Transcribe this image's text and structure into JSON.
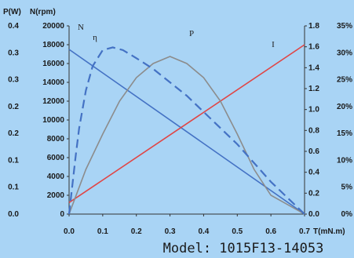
{
  "chart_data": {
    "type": "line",
    "model_label": "Model: 1015F13-14053",
    "x_axis": {
      "label": "T(mN.m)",
      "range": [
        0,
        0.7
      ],
      "ticks": [
        "0.0",
        "0.1",
        "0.2",
        "0.3",
        "0.4",
        "0.5",
        "0.6",
        "0.7"
      ]
    },
    "left_axes": [
      {
        "label": "P(W)",
        "range": [
          0,
          0.4
        ],
        "ticks": [
          "0.0",
          "0.1",
          "0.1",
          "0.2",
          "0.2",
          "0.3",
          "0.3",
          "0.4"
        ]
      },
      {
        "label": "N(rpm)",
        "range": [
          0,
          20000
        ],
        "ticks": [
          "0",
          "2000",
          "4000",
          "6000",
          "8000",
          "10000",
          "12000",
          "14000",
          "16000",
          "18000",
          "20000"
        ]
      }
    ],
    "right_axes": [
      {
        "label": "",
        "range": [
          0,
          1.8
        ],
        "ticks": [
          "0.0",
          "0.2",
          "0.4",
          "0.6",
          "0.8",
          "1.0",
          "1.2",
          "1.4",
          "1.6",
          "1.8"
        ]
      },
      {
        "label": "",
        "range": [
          0,
          35
        ],
        "ticks": [
          "0%",
          "5%",
          "10%",
          "15%",
          "20%",
          "25%",
          "30%",
          "35%"
        ]
      }
    ],
    "series": [
      {
        "name": "N",
        "axis": "N(rpm)",
        "style": "solid",
        "color": "#4472c4",
        "points": [
          [
            0.0,
            17500
          ],
          [
            0.7,
            0
          ]
        ]
      },
      {
        "name": "I",
        "axis": "right_0",
        "style": "solid",
        "color": "#e04646",
        "points": [
          [
            0.0,
            0.11
          ],
          [
            0.7,
            1.62
          ]
        ]
      },
      {
        "name": "P",
        "axis": "P(W)",
        "style": "solid",
        "color": "#8c8c8c",
        "points": [
          [
            0.0,
            0.0
          ],
          [
            0.05,
            0.095
          ],
          [
            0.1,
            0.17
          ],
          [
            0.15,
            0.24
          ],
          [
            0.2,
            0.29
          ],
          [
            0.25,
            0.32
          ],
          [
            0.3,
            0.335
          ],
          [
            0.35,
            0.32
          ],
          [
            0.4,
            0.29
          ],
          [
            0.45,
            0.24
          ],
          [
            0.5,
            0.17
          ],
          [
            0.55,
            0.095
          ],
          [
            0.6,
            0.04
          ],
          [
            0.7,
            0.0
          ]
        ]
      },
      {
        "name": "η",
        "axis": "right_1",
        "style": "dashed",
        "color": "#4472c4",
        "points": [
          [
            0.0,
            0.0
          ],
          [
            0.01,
            5.5
          ],
          [
            0.02,
            11.0
          ],
          [
            0.03,
            16.0
          ],
          [
            0.05,
            23.0
          ],
          [
            0.07,
            27.5
          ],
          [
            0.1,
            30.5
          ],
          [
            0.13,
            31.0
          ],
          [
            0.16,
            30.5
          ],
          [
            0.2,
            29.0
          ],
          [
            0.25,
            27.0
          ],
          [
            0.3,
            24.5
          ],
          [
            0.35,
            22.0
          ],
          [
            0.4,
            19.0
          ],
          [
            0.45,
            16.0
          ],
          [
            0.5,
            13.0
          ],
          [
            0.55,
            9.5
          ],
          [
            0.6,
            6.0
          ],
          [
            0.65,
            3.0
          ],
          [
            0.7,
            0.0
          ]
        ]
      }
    ],
    "grid": false,
    "legend": "none"
  }
}
